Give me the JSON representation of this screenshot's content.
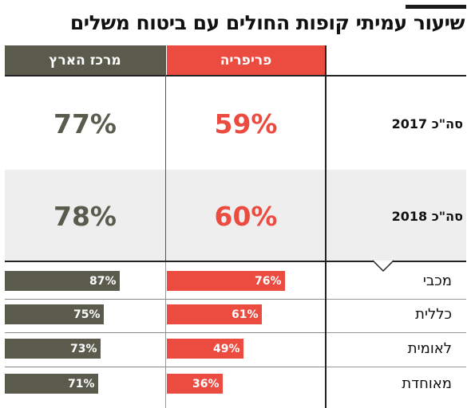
{
  "title": "שיעור עמיתי קופות החולים עם ביטוח משלים",
  "colors": {
    "center": "#5a5a4d",
    "periphery": "#ec4b40",
    "band": "#eeeeee"
  },
  "chart_data": {
    "type": "bar",
    "title": "שיעור עמיתי קופות החולים עם ביטוח משלים",
    "series_labels": [
      "פריפריה",
      "מרכז הארץ"
    ],
    "totals": [
      {
        "label": "סה\"כ 2017",
        "periphery": "59%",
        "center": "77%"
      },
      {
        "label": "סה\"כ 2018",
        "periphery": "60%",
        "center": "78%"
      }
    ],
    "categories": [
      "מכבי",
      "כללית",
      "לאומית",
      "מאוחדת"
    ],
    "series": [
      {
        "name": "פריפריה",
        "values": [
          76,
          61,
          49,
          36
        ],
        "labels": [
          "76%",
          "61%",
          "49%",
          "36%"
        ]
      },
      {
        "name": "מרכז הארץ",
        "values": [
          87,
          75,
          73,
          71
        ],
        "labels": [
          "87%",
          "75%",
          "73%",
          "71%"
        ]
      }
    ],
    "unit": "%"
  }
}
